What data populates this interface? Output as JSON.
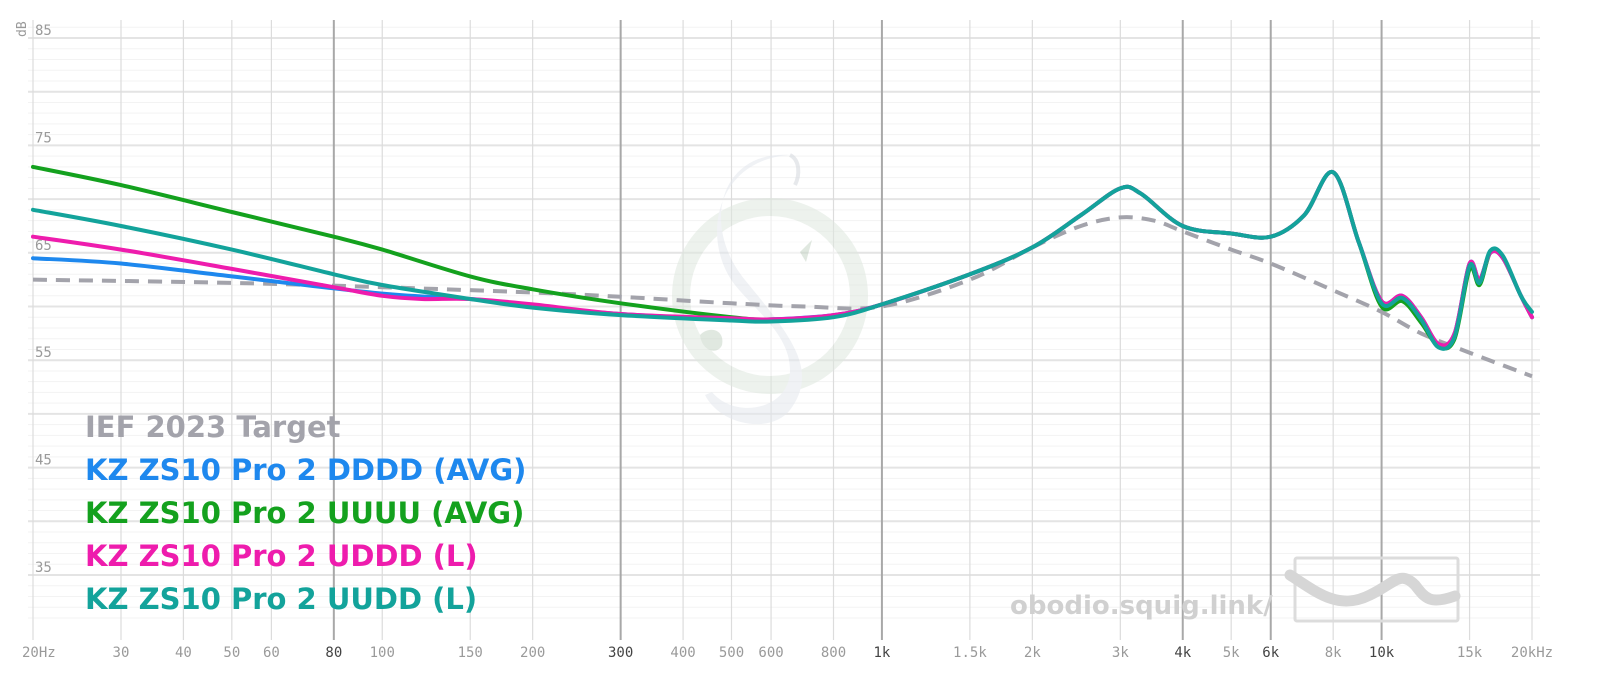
{
  "chart_data": {
    "type": "line",
    "title": "",
    "xlabel": "",
    "ylabel": "dB",
    "x_scale": "log",
    "xlim": [
      20,
      20000
    ],
    "ylim": [
      30,
      86
    ],
    "grid": true,
    "legend_placement": "bottom-left",
    "x_ticks": [
      {
        "value": 20,
        "label": "20Hz",
        "major": false
      },
      {
        "value": 30,
        "label": "30",
        "major": false
      },
      {
        "value": 40,
        "label": "40",
        "major": false
      },
      {
        "value": 50,
        "label": "50",
        "major": false
      },
      {
        "value": 60,
        "label": "60",
        "major": false
      },
      {
        "value": 80,
        "label": "80",
        "major": true
      },
      {
        "value": 100,
        "label": "100",
        "major": false
      },
      {
        "value": 150,
        "label": "150",
        "major": false
      },
      {
        "value": 200,
        "label": "200",
        "major": false
      },
      {
        "value": 300,
        "label": "300",
        "major": true
      },
      {
        "value": 400,
        "label": "400",
        "major": false
      },
      {
        "value": 500,
        "label": "500",
        "major": false
      },
      {
        "value": 600,
        "label": "600",
        "major": false
      },
      {
        "value": 800,
        "label": "800",
        "major": false
      },
      {
        "value": 1000,
        "label": "1k",
        "major": true
      },
      {
        "value": 1500,
        "label": "1.5k",
        "major": false
      },
      {
        "value": 2000,
        "label": "2k",
        "major": false
      },
      {
        "value": 3000,
        "label": "3k",
        "major": false
      },
      {
        "value": 4000,
        "label": "4k",
        "major": true
      },
      {
        "value": 5000,
        "label": "5k",
        "major": false
      },
      {
        "value": 6000,
        "label": "6k",
        "major": true
      },
      {
        "value": 8000,
        "label": "8k",
        "major": false
      },
      {
        "value": 10000,
        "label": "10k",
        "major": true
      },
      {
        "value": 15000,
        "label": "15k",
        "major": false
      },
      {
        "value": 20000,
        "label": "20kHz",
        "major": false
      }
    ],
    "y_ticks": [
      {
        "value": 85,
        "label": "85"
      },
      {
        "value": 75,
        "label": "75"
      },
      {
        "value": 65,
        "label": "65"
      },
      {
        "value": 55,
        "label": "55"
      },
      {
        "value": 45,
        "label": "45"
      },
      {
        "value": 35,
        "label": "35"
      }
    ],
    "series": [
      {
        "name": "IEF 2023 Target",
        "color": "#a3a3ab",
        "dashed": true,
        "x": [
          20,
          50,
          100,
          200,
          300,
          500,
          700,
          1000,
          1500,
          2000,
          2500,
          3000,
          3500,
          4000,
          5000,
          6000,
          8000,
          10000,
          12000,
          15000,
          20000
        ],
        "y": [
          62.5,
          62.2,
          61.8,
          61.3,
          60.9,
          60.3,
          60.0,
          60.0,
          62.5,
          65.5,
          67.5,
          68.3,
          68.0,
          67.0,
          65.3,
          64.0,
          61.5,
          59.5,
          57.5,
          55.7,
          53.5
        ]
      },
      {
        "name": "KZ ZS10 Pro 2 DDDD (AVG)",
        "color": "#1e88ee",
        "dashed": false,
        "x": [
          20,
          30,
          50,
          100,
          150,
          200,
          300,
          500,
          600,
          800,
          1000,
          1500,
          2000,
          2500,
          3000,
          3300,
          4000,
          5000,
          6000,
          7000,
          8000,
          9000,
          10000,
          11000,
          12000,
          13000,
          14000,
          15000,
          15700,
          16500,
          17500,
          19000,
          20000
        ],
        "y": [
          64.5,
          64.0,
          62.8,
          61.2,
          60.7,
          60.0,
          59.3,
          58.8,
          58.8,
          59.2,
          60.2,
          63.0,
          65.5,
          68.5,
          71.0,
          70.5,
          67.5,
          66.8,
          66.5,
          68.5,
          72.5,
          66.0,
          60.5,
          61.0,
          59.0,
          56.5,
          57.5,
          64.0,
          62.5,
          65.0,
          64.5,
          61.0,
          59.0
        ]
      },
      {
        "name": "KZ ZS10 Pro 2 UUUU (AVG)",
        "color": "#14a11e",
        "dashed": false,
        "x": [
          20,
          30,
          50,
          80,
          100,
          150,
          200,
          300,
          500,
          600,
          800,
          1000,
          1500,
          2000,
          2500,
          3000,
          3300,
          4000,
          5000,
          6000,
          7000,
          8000,
          9000,
          10000,
          11000,
          12000,
          13000,
          14000,
          15000,
          15700,
          16500,
          17500,
          19000,
          20000
        ],
        "y": [
          73.0,
          71.3,
          68.8,
          66.5,
          65.3,
          62.8,
          61.6,
          60.3,
          59.0,
          58.8,
          59.1,
          60.2,
          63.0,
          65.5,
          68.5,
          71.0,
          70.5,
          67.5,
          66.8,
          66.5,
          68.5,
          72.5,
          66.0,
          60.0,
          60.5,
          58.5,
          56.3,
          57.0,
          63.5,
          62.0,
          65.0,
          64.5,
          61.0,
          59.0
        ]
      },
      {
        "name": "KZ ZS10 Pro 2 UDDD (L)",
        "color": "#ee1cad",
        "dashed": false,
        "x": [
          20,
          30,
          50,
          80,
          100,
          120,
          150,
          200,
          300,
          500,
          600,
          800,
          1000,
          1500,
          2000,
          2500,
          3000,
          3300,
          4000,
          5000,
          6000,
          7000,
          8000,
          9000,
          10000,
          11000,
          12000,
          13000,
          14000,
          15000,
          15700,
          16500,
          17500,
          19000,
          20000
        ],
        "y": [
          66.5,
          65.3,
          63.5,
          61.8,
          61.0,
          60.7,
          60.7,
          60.2,
          59.3,
          58.9,
          58.8,
          59.2,
          60.2,
          63.0,
          65.5,
          68.5,
          71.0,
          70.5,
          67.5,
          66.8,
          66.5,
          68.5,
          72.5,
          66.0,
          60.5,
          61.0,
          59.0,
          56.5,
          57.5,
          64.0,
          62.5,
          65.0,
          64.5,
          61.0,
          59.0
        ]
      },
      {
        "name": "KZ ZS10 Pro 2 UUDD (L)",
        "color": "#13a39b",
        "dashed": false,
        "x": [
          20,
          30,
          50,
          80,
          100,
          150,
          200,
          300,
          500,
          600,
          800,
          1000,
          1500,
          2000,
          2500,
          3000,
          3300,
          4000,
          5000,
          6000,
          7000,
          8000,
          9000,
          10000,
          11000,
          12000,
          13000,
          14000,
          15000,
          15700,
          16500,
          17500,
          19000,
          20000
        ],
        "y": [
          69.0,
          67.5,
          65.3,
          63.0,
          62.0,
          60.7,
          59.9,
          59.2,
          58.7,
          58.6,
          59.0,
          60.2,
          63.0,
          65.5,
          68.5,
          71.0,
          70.5,
          67.5,
          66.8,
          66.5,
          68.5,
          72.5,
          66.0,
          60.3,
          60.8,
          58.8,
          56.2,
          57.2,
          63.8,
          62.2,
          65.2,
          64.7,
          61.0,
          59.5
        ]
      }
    ],
    "watermark_text": "obodio.squig.link/"
  }
}
